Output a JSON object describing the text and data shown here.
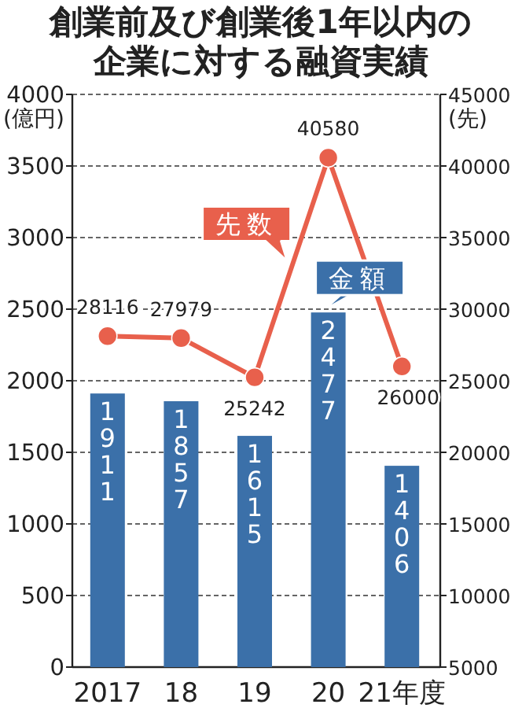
{
  "chart_data": {
    "type": "bar",
    "title": "創業前及び創業後1年以内の企業に対する融資実績",
    "categories": [
      "2017",
      "18",
      "19",
      "20",
      "21年度"
    ],
    "series": [
      {
        "name": "金額",
        "color": "#3b70a9",
        "values": [
          1911,
          1857,
          1615,
          2477,
          1406
        ]
      },
      {
        "name": "先数",
        "type": "line",
        "axis": "y2",
        "color": "#e8604c",
        "values": [
          28116,
          27979,
          25242,
          40580,
          26000
        ]
      }
    ],
    "ylabel": "(億円)",
    "y2label": "(先)",
    "ylim": [
      0,
      4000
    ],
    "yticks": [
      0,
      500,
      1000,
      1500,
      2000,
      2500,
      3000,
      3500,
      4000
    ],
    "y2lim": [
      5000,
      45000
    ],
    "y2ticks": [
      5000,
      10000,
      15000,
      20000,
      25000,
      30000,
      35000,
      40000,
      45000
    ],
    "grid": "y",
    "marker": "circle",
    "line_style": "solid",
    "data_labels": true
  }
}
